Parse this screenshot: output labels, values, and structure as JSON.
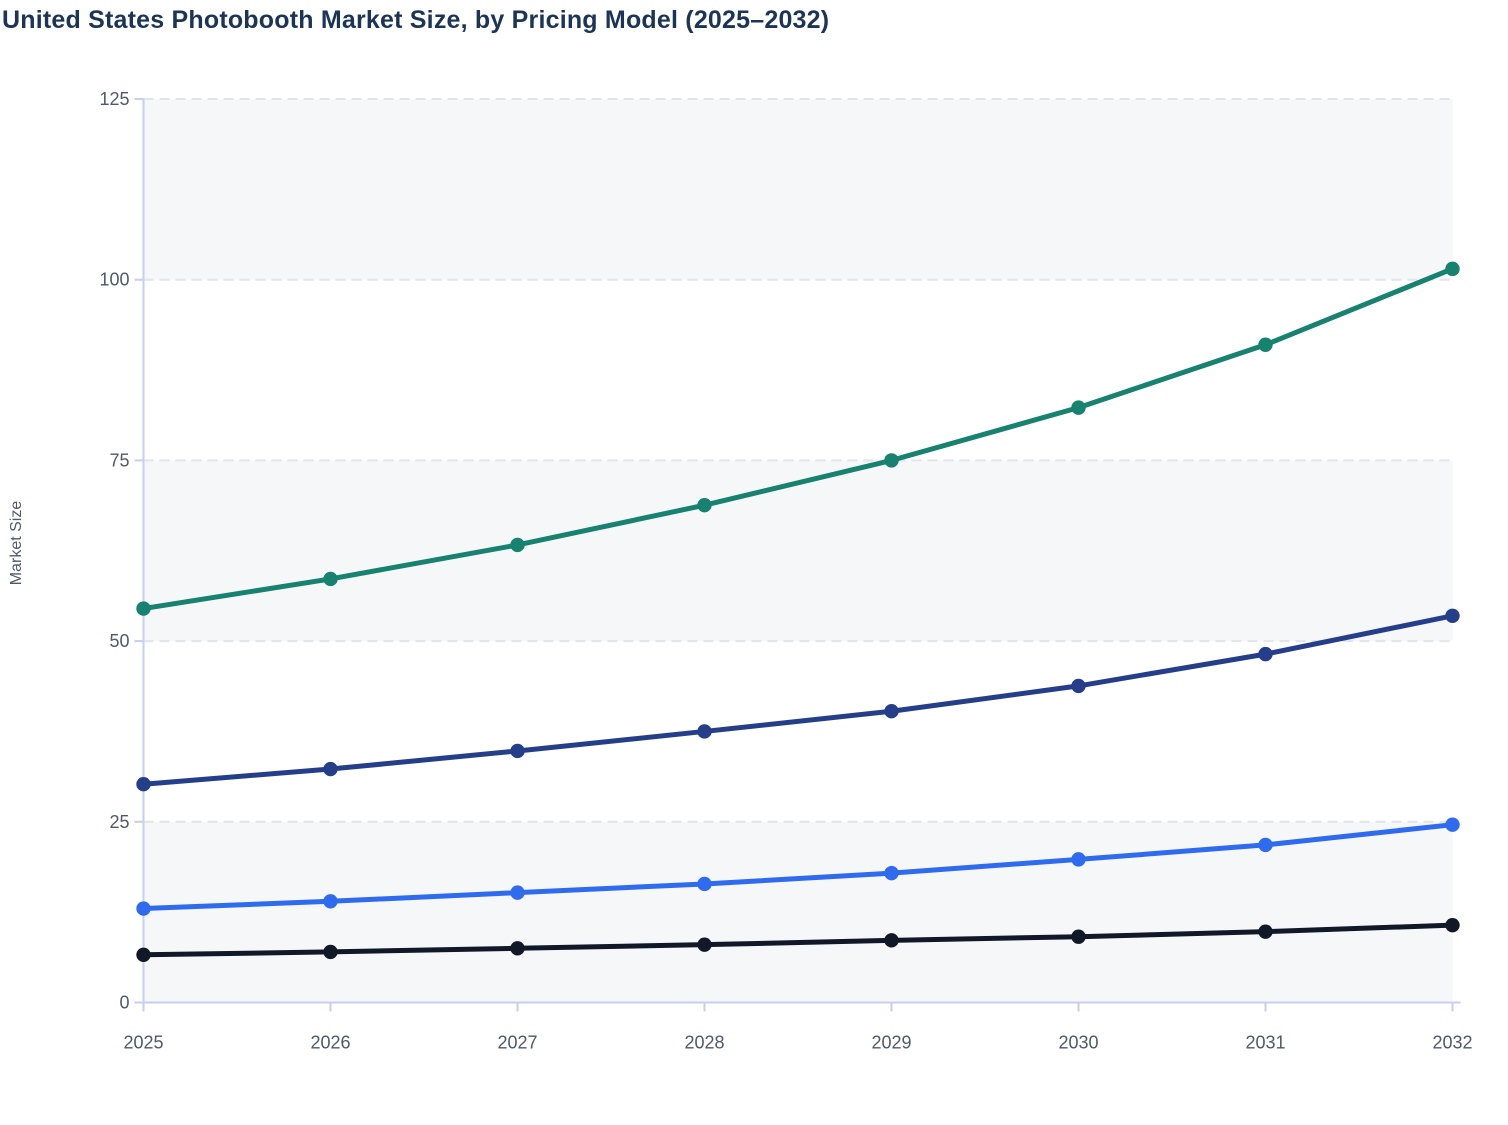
{
  "page": {
    "title": "United States Photobooth Market Size, by Pricing Model (2025–2032)"
  },
  "chart_data": {
    "type": "line",
    "title": "United States Photobooth Market Size, by Pricing Model (2025–2032)",
    "xlabel": "",
    "ylabel": "Market Size",
    "x": [
      "2025",
      "2026",
      "2027",
      "2028",
      "2029",
      "2030",
      "2031",
      "2032"
    ],
    "ylim": [
      0,
      125
    ],
    "yticks": [
      0,
      25,
      50,
      75,
      100,
      125
    ],
    "grid": "horizontal-dashed",
    "legend": "none",
    "plot_background": "alternating-horizontal-bands",
    "colors": {
      "band": "#f6f7f9",
      "grid": "#e1e4e8",
      "axis": "#c7cef2",
      "tick_text": "#4e5a68",
      "title": "#1c3557"
    },
    "series": [
      {
        "id": "teal",
        "color": "#16826F",
        "values": [
          54.5,
          58.6,
          63.3,
          68.8,
          75.0,
          82.3,
          91.0,
          101.5
        ]
      },
      {
        "id": "navy",
        "color": "#243E8A",
        "values": [
          30.2,
          32.3,
          34.8,
          37.5,
          40.3,
          43.8,
          48.2,
          53.5
        ]
      },
      {
        "id": "bright-blue",
        "color": "#2F6BEE",
        "values": [
          13.0,
          14.0,
          15.2,
          16.4,
          17.9,
          19.8,
          21.8,
          24.6
        ]
      },
      {
        "id": "black",
        "color": "#111828",
        "values": [
          6.6,
          7.0,
          7.5,
          8.0,
          8.6,
          9.1,
          9.8,
          10.7
        ]
      }
    ]
  }
}
